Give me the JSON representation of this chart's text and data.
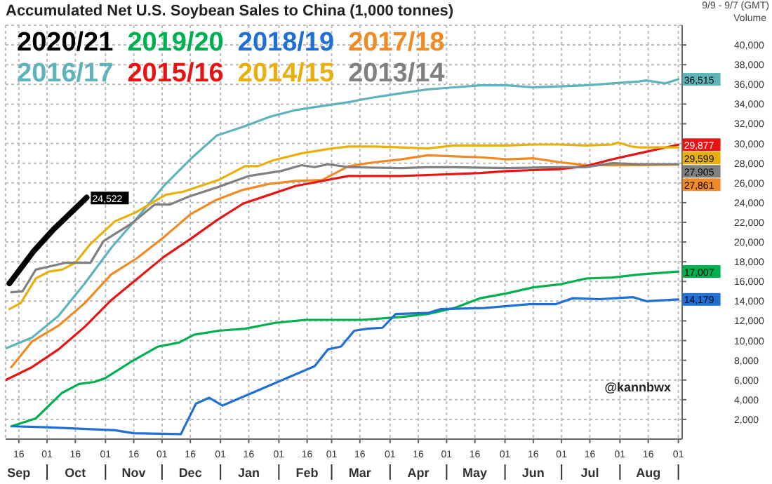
{
  "chart_data": {
    "type": "line",
    "title": "Accumulated Net U.S. Soybean Sales to China (1,000 tonnes)",
    "ylabel": "Volume",
    "annotations": [
      "9/9 - 9/7 (GMT)",
      "@kannbwx"
    ],
    "legend": "top left",
    "grid": true,
    "marker": "none",
    "line_style": "solid",
    "xlim": [
      "2020-09-09",
      "2021-09-03"
    ],
    "xticks": [
      {
        "value": "2020-09-16",
        "label": "16\nSep"
      },
      {
        "value": "2020-10-01",
        "label": "01"
      },
      {
        "value": "2020-10-16",
        "label": "16\nOct"
      },
      {
        "value": "2020-11-01",
        "label": "01"
      },
      {
        "value": "2020-11-16",
        "label": "16\nNov"
      },
      {
        "value": "2020-12-01",
        "label": "01"
      },
      {
        "value": "2020-12-16",
        "label": "16\nDec"
      },
      {
        "value": "2021-01-01",
        "label": "01"
      },
      {
        "value": "2021-01-16",
        "label": "16\nJan"
      },
      {
        "value": "2021-02-01",
        "label": "01"
      },
      {
        "value": "2021-02-16",
        "label": "16\nFeb"
      },
      {
        "value": "2021-03-01",
        "label": "01"
      },
      {
        "value": "2021-03-16",
        "label": "16\nMar"
      },
      {
        "value": "2021-04-01",
        "label": "01"
      },
      {
        "value": "2021-04-16",
        "label": "16\nApr"
      },
      {
        "value": "2021-05-01",
        "label": "01"
      },
      {
        "value": "2021-05-16",
        "label": "16\nMay"
      },
      {
        "value": "2021-06-01",
        "label": "01"
      },
      {
        "value": "2021-06-16",
        "label": "16\nJun"
      },
      {
        "value": "2021-07-01",
        "label": "01"
      },
      {
        "value": "2021-07-16",
        "label": "16\nJul"
      },
      {
        "value": "2021-08-01",
        "label": "01"
      },
      {
        "value": "2021-08-16",
        "label": "16\nAug"
      },
      {
        "value": "2021-09-01",
        "label": "01"
      }
    ],
    "ylim": [
      0,
      42000
    ],
    "yticks": [
      {
        "value": 2000,
        "label": "2,000"
      },
      {
        "value": 4000,
        "label": "4,000"
      },
      {
        "value": 6000,
        "label": "6,000"
      },
      {
        "value": 8000,
        "label": "8,000"
      },
      {
        "value": 10000,
        "label": "10,000"
      },
      {
        "value": 12000,
        "label": "12,000"
      },
      {
        "value": 14000,
        "label": "14,000"
      },
      {
        "value": 16000,
        "label": "16,000"
      },
      {
        "value": 18000,
        "label": "18,000"
      },
      {
        "value": 20000,
        "label": "20,000"
      },
      {
        "value": 22000,
        "label": "22,000"
      },
      {
        "value": 24000,
        "label": "24,000"
      },
      {
        "value": 26000,
        "label": "26,000"
      },
      {
        "value": 28000,
        "label": "28,000"
      },
      {
        "value": 30000,
        "label": "30,000"
      },
      {
        "value": 32000,
        "label": "32,000"
      },
      {
        "value": 34000,
        "label": "34,000"
      },
      {
        "value": 36000,
        "label": "36,000"
      },
      {
        "value": 38000,
        "label": "38,000"
      },
      {
        "value": 40000,
        "label": "40,000"
      }
    ],
    "series": [
      {
        "name": "2020/21",
        "color": "#000000",
        "x": [
          "2020-09-11",
          "2020-09-24",
          "2020-10-04",
          "2020-10-22"
        ],
        "values": [
          15800,
          19100,
          21200,
          24522
        ],
        "value_labels": [
          null,
          null,
          null,
          "24,522"
        ]
      },
      {
        "name": "2019/20",
        "color": "#00b050",
        "x": [
          "2020-09-12",
          "2020-09-25",
          "2020-10-09",
          "2020-10-18",
          "2020-10-26",
          "2020-11-01",
          "2020-11-15",
          "2020-11-29",
          "2020-12-10",
          "2020-12-18",
          "2020-12-31",
          "2021-01-14",
          "2021-01-30",
          "2021-02-15",
          "2021-03-01",
          "2021-03-17",
          "2021-04-07",
          "2021-04-21",
          "2021-05-05",
          "2021-05-19",
          "2021-06-02",
          "2021-06-16",
          "2021-06-30",
          "2021-07-14",
          "2021-07-28",
          "2021-08-11",
          "2021-09-01"
        ],
        "values": [
          1300,
          2100,
          4700,
          5600,
          5800,
          6200,
          7900,
          9400,
          9800,
          10600,
          11000,
          11200,
          11800,
          12100,
          12100,
          12100,
          12400,
          12700,
          13300,
          14300,
          14800,
          15400,
          15700,
          16300,
          16400,
          16700,
          17007
        ],
        "value_labels": [
          null,
          null,
          null,
          null,
          null,
          null,
          null,
          null,
          null,
          null,
          null,
          null,
          null,
          null,
          null,
          null,
          null,
          null,
          null,
          null,
          null,
          null,
          null,
          null,
          null,
          null,
          "17,007"
        ]
      },
      {
        "name": "2018/19",
        "color": "#1f6fd4",
        "x": [
          "2020-09-13",
          "2020-10-01",
          "2020-11-06",
          "2020-11-16",
          "2020-12-11",
          "2020-12-12",
          "2020-12-19",
          "2020-12-26",
          "2021-01-02",
          "2021-02-20",
          "2021-02-27",
          "2021-03-06",
          "2021-03-13",
          "2021-03-20",
          "2021-03-28",
          "2021-04-04",
          "2021-04-21",
          "2021-04-28",
          "2021-05-21",
          "2021-06-14",
          "2021-06-28",
          "2021-07-07",
          "2021-07-21",
          "2021-08-08",
          "2021-08-15",
          "2021-09-01"
        ],
        "values": [
          1300,
          1200,
          900,
          600,
          500,
          900,
          3600,
          4200,
          3400,
          7400,
          9100,
          9400,
          11000,
          11200,
          11300,
          12700,
          12800,
          13200,
          13300,
          13700,
          13700,
          14300,
          14200,
          14400,
          14000,
          14179
        ],
        "value_labels": [
          null,
          null,
          null,
          null,
          null,
          null,
          null,
          null,
          null,
          null,
          null,
          null,
          null,
          null,
          null,
          null,
          null,
          null,
          null,
          null,
          null,
          null,
          null,
          null,
          null,
          "14,179"
        ]
      },
      {
        "name": "2017/18",
        "color": "#f08a24",
        "x": [
          "2020-09-12",
          "2020-09-23",
          "2020-10-07",
          "2020-10-21",
          "2020-11-04",
          "2020-11-18",
          "2020-12-02",
          "2020-12-16",
          "2020-12-30",
          "2021-01-13",
          "2021-01-27",
          "2021-02-10",
          "2021-02-24",
          "2021-03-10",
          "2021-03-24",
          "2021-04-07",
          "2021-04-21",
          "2021-05-05",
          "2021-05-19",
          "2021-06-02",
          "2021-06-16",
          "2021-06-30",
          "2021-07-14",
          "2021-07-28",
          "2021-08-11",
          "2021-09-01"
        ],
        "values": [
          7300,
          9900,
          11500,
          13800,
          16700,
          18400,
          20500,
          22800,
          24300,
          25300,
          25900,
          26200,
          26300,
          27700,
          28100,
          28400,
          28800,
          28700,
          28600,
          28400,
          28500,
          28100,
          27800,
          27800,
          27800,
          27861
        ],
        "value_labels": [
          null,
          null,
          null,
          null,
          null,
          null,
          null,
          null,
          null,
          null,
          null,
          null,
          null,
          null,
          null,
          null,
          null,
          null,
          null,
          null,
          null,
          null,
          null,
          null,
          null,
          "27,861"
        ]
      },
      {
        "name": "2016/17",
        "color": "#5fb3ba",
        "x": [
          "2020-09-09",
          "2020-09-23",
          "2020-10-07",
          "2020-10-21",
          "2020-11-04",
          "2020-11-18",
          "2020-12-02",
          "2020-12-16",
          "2020-12-30",
          "2021-01-13",
          "2021-01-27",
          "2021-02-10",
          "2021-02-24",
          "2021-03-10",
          "2021-03-24",
          "2021-04-07",
          "2021-04-21",
          "2021-05-05",
          "2021-05-19",
          "2021-06-02",
          "2021-06-16",
          "2021-06-30",
          "2021-07-14",
          "2021-07-28",
          "2021-08-11",
          "2021-08-15",
          "2021-08-25",
          "2021-09-01"
        ],
        "values": [
          9200,
          10300,
          12500,
          15800,
          19400,
          22500,
          25700,
          28400,
          30800,
          31700,
          32700,
          33400,
          33800,
          34200,
          34700,
          35100,
          35500,
          35700,
          35900,
          35900,
          35700,
          35800,
          35900,
          36100,
          36300,
          36400,
          36100,
          36515
        ],
        "value_labels": [
          null,
          null,
          null,
          null,
          null,
          null,
          null,
          null,
          null,
          null,
          null,
          null,
          null,
          null,
          null,
          null,
          null,
          null,
          null,
          null,
          null,
          null,
          null,
          null,
          null,
          null,
          null,
          "36,515"
        ]
      },
      {
        "name": "2015/16",
        "color": "#e81414",
        "x": [
          "2020-09-09",
          "2020-09-23",
          "2020-10-07",
          "2020-10-21",
          "2020-11-04",
          "2020-11-18",
          "2020-12-02",
          "2020-12-16",
          "2020-12-30",
          "2021-01-13",
          "2021-01-27",
          "2021-02-10",
          "2021-02-24",
          "2021-03-10",
          "2021-03-24",
          "2021-04-07",
          "2021-04-21",
          "2021-05-05",
          "2021-05-19",
          "2021-06-02",
          "2021-06-16",
          "2021-06-30",
          "2021-07-14",
          "2021-07-28",
          "2021-08-11",
          "2021-09-01"
        ],
        "values": [
          6000,
          7300,
          9100,
          11400,
          14100,
          16300,
          18500,
          20300,
          22200,
          23900,
          24800,
          25700,
          26200,
          26700,
          26700,
          26700,
          26800,
          26900,
          27000,
          27200,
          27300,
          27400,
          27700,
          28400,
          29000,
          29877
        ],
        "value_labels": [
          null,
          null,
          null,
          null,
          null,
          null,
          null,
          null,
          null,
          null,
          null,
          null,
          null,
          null,
          null,
          null,
          null,
          null,
          null,
          null,
          null,
          null,
          null,
          null,
          null,
          "29,877"
        ]
      },
      {
        "name": "2014/15",
        "color": "#e8b00c",
        "x": [
          "2020-09-11",
          "2020-09-17",
          "2020-09-25",
          "2020-10-02",
          "2020-10-09",
          "2020-10-16",
          "2020-10-24",
          "2020-11-06",
          "2020-11-17",
          "2020-12-03",
          "2020-12-12",
          "2020-12-31",
          "2021-01-14",
          "2021-01-21",
          "2021-01-29",
          "2021-02-13",
          "2021-03-01",
          "2021-03-10",
          "2021-03-24",
          "2021-04-07",
          "2021-04-21",
          "2021-05-05",
          "2021-06-02",
          "2021-06-16",
          "2021-06-30",
          "2021-07-14",
          "2021-07-28",
          "2021-07-31",
          "2021-08-07",
          "2021-08-11",
          "2021-09-01"
        ],
        "values": [
          13200,
          13800,
          16300,
          17000,
          17200,
          17900,
          19800,
          22100,
          23000,
          24800,
          25100,
          26300,
          27700,
          27700,
          28300,
          29000,
          29500,
          29700,
          29700,
          29600,
          29500,
          29800,
          29800,
          29900,
          29900,
          29800,
          29900,
          30100,
          29700,
          29600,
          29599
        ],
        "value_labels": [
          null,
          null,
          null,
          null,
          null,
          null,
          null,
          null,
          null,
          null,
          null,
          null,
          null,
          null,
          null,
          null,
          null,
          null,
          null,
          null,
          null,
          null,
          null,
          null,
          null,
          null,
          null,
          null,
          null,
          null,
          "29,599"
        ]
      },
      {
        "name": "2013/14",
        "color": "#808080",
        "x": [
          "2020-09-12",
          "2020-09-18",
          "2020-09-25",
          "2020-10-11",
          "2020-10-24",
          "2020-10-31",
          "2020-11-15",
          "2020-11-27",
          "2020-12-05",
          "2020-12-15",
          "2020-12-31",
          "2021-01-16",
          "2021-02-02",
          "2021-02-13",
          "2021-02-20",
          "2021-02-27",
          "2021-03-10",
          "2021-04-07",
          "2021-04-21",
          "2021-05-05",
          "2021-06-02",
          "2021-06-30",
          "2021-07-14",
          "2021-07-28",
          "2021-08-11",
          "2021-09-01"
        ],
        "values": [
          14900,
          15000,
          17200,
          17900,
          17900,
          20100,
          21900,
          23800,
          23800,
          24600,
          25600,
          26700,
          27200,
          27800,
          27600,
          27900,
          27600,
          27500,
          27600,
          27600,
          27500,
          27600,
          27600,
          28000,
          27900,
          27905
        ],
        "value_labels": [
          null,
          null,
          null,
          null,
          null,
          null,
          null,
          null,
          null,
          null,
          null,
          null,
          null,
          null,
          null,
          null,
          null,
          null,
          null,
          null,
          null,
          null,
          null,
          null,
          null,
          "27,905"
        ]
      }
    ]
  }
}
